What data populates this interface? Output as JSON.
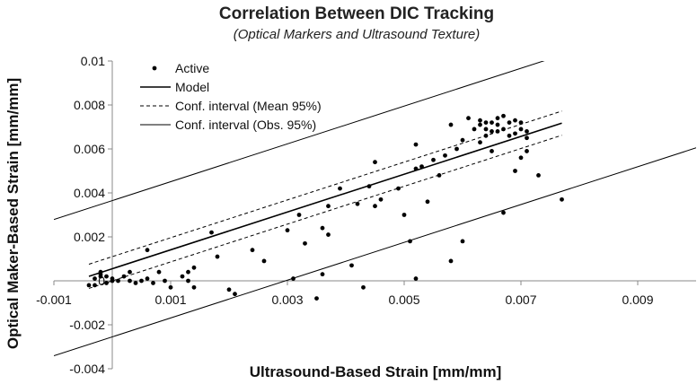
{
  "chart_data": {
    "type": "scatter",
    "title": "Correlation Between DIC Tracking",
    "subtitle": "(Optical Markers and Ultrasound Texture)",
    "xlabel": "Ultrasound-Based Strain [mm/mm]",
    "ylabel": "Optical Maker-Based  Strain [mm/mm]",
    "xlim": [
      -0.001,
      0.01
    ],
    "ylim": [
      -0.004,
      0.01
    ],
    "x_ticks": [
      -0.001,
      0.001,
      0.003,
      0.005,
      0.007,
      0.009
    ],
    "x_tick_labels": [
      "-0.001",
      "0.001",
      "0.003",
      "0.005",
      "0.007",
      "0.009"
    ],
    "y_ticks": [
      -0.004,
      -0.002,
      0,
      0.002,
      0.004,
      0.006,
      0.008,
      0.01
    ],
    "y_tick_labels": [
      "-0.004",
      "-0.002",
      "0",
      "0.002",
      "0.004",
      "0.006",
      "0.008",
      "0.01"
    ],
    "grid": false,
    "legend_position": "top-left",
    "legend": [
      "Active",
      "Model",
      "Conf. interval (Mean 95%)",
      "Conf. interval (Obs. 95%)"
    ],
    "model": {
      "slope": 0.86,
      "intercept": 0.00055
    },
    "mean_ci_halfwidth": 0.00055,
    "obs_ci_halfwidth": 0.0031,
    "series": [
      {
        "name": "Active",
        "points": [
          [
            -0.0004,
            -0.0002
          ],
          [
            -0.0003,
            -0.0002
          ],
          [
            -0.0003,
            0.0001
          ],
          [
            -0.0002,
            0.0002
          ],
          [
            -0.0002,
            0.0003
          ],
          [
            -0.0002,
            0.0004
          ],
          [
            -0.0001,
            -0.0001
          ],
          [
            -0.0001,
            0.0002
          ],
          [
            0.0,
            0.0
          ],
          [
            0.0,
            0.0001
          ],
          [
            0.0001,
            0.0
          ],
          [
            0.0002,
            0.0002
          ],
          [
            0.0003,
            0.0004
          ],
          [
            0.0003,
            0.0
          ],
          [
            0.0004,
            -0.0001
          ],
          [
            0.0005,
            0.0
          ],
          [
            0.0006,
            0.0001
          ],
          [
            0.0006,
            0.0014
          ],
          [
            0.0007,
            -0.0001
          ],
          [
            0.0008,
            0.0004
          ],
          [
            0.0009,
            0.0
          ],
          [
            0.001,
            -0.0003
          ],
          [
            0.0012,
            0.0002
          ],
          [
            0.0013,
            0.0004
          ],
          [
            0.0013,
            0.0
          ],
          [
            0.0014,
            0.0006
          ],
          [
            0.0014,
            -0.0003
          ],
          [
            0.0017,
            0.0022
          ],
          [
            0.0018,
            0.0011
          ],
          [
            0.002,
            -0.0004
          ],
          [
            0.0021,
            -0.0006
          ],
          [
            0.0024,
            0.0014
          ],
          [
            0.0026,
            0.0009
          ],
          [
            0.003,
            0.0023
          ],
          [
            0.0031,
            0.0001
          ],
          [
            0.0032,
            0.003
          ],
          [
            0.0033,
            0.0017
          ],
          [
            0.0035,
            -0.0008
          ],
          [
            0.0036,
            0.0024
          ],
          [
            0.0036,
            0.0003
          ],
          [
            0.0037,
            0.0021
          ],
          [
            0.0037,
            0.0034
          ],
          [
            0.0039,
            0.0042
          ],
          [
            0.0041,
            0.0007
          ],
          [
            0.0042,
            0.0035
          ],
          [
            0.0043,
            -0.0003
          ],
          [
            0.0044,
            0.0043
          ],
          [
            0.0045,
            0.0054
          ],
          [
            0.0045,
            0.0034
          ],
          [
            0.0046,
            0.0037
          ],
          [
            0.0049,
            0.0042
          ],
          [
            0.005,
            0.003
          ],
          [
            0.0051,
            0.0018
          ],
          [
            0.0052,
            0.0001
          ],
          [
            0.0052,
            0.0051
          ],
          [
            0.0052,
            0.0062
          ],
          [
            0.0053,
            0.0052
          ],
          [
            0.0054,
            0.0036
          ],
          [
            0.0055,
            0.0055
          ],
          [
            0.0056,
            0.0048
          ],
          [
            0.0057,
            0.0057
          ],
          [
            0.0058,
            0.0071
          ],
          [
            0.0058,
            0.0009
          ],
          [
            0.0059,
            0.006
          ],
          [
            0.006,
            0.0064
          ],
          [
            0.006,
            0.0018
          ],
          [
            0.0061,
            0.0074
          ],
          [
            0.0062,
            0.0069
          ],
          [
            0.0063,
            0.0073
          ],
          [
            0.0063,
            0.0071
          ],
          [
            0.0063,
            0.0063
          ],
          [
            0.0064,
            0.0072
          ],
          [
            0.0064,
            0.0069
          ],
          [
            0.0064,
            0.0066
          ],
          [
            0.0065,
            0.0072
          ],
          [
            0.0065,
            0.0059
          ],
          [
            0.0065,
            0.0068
          ],
          [
            0.0066,
            0.0071
          ],
          [
            0.0066,
            0.0074
          ],
          [
            0.0066,
            0.0068
          ],
          [
            0.0067,
            0.0069
          ],
          [
            0.0067,
            0.0031
          ],
          [
            0.0067,
            0.0075
          ],
          [
            0.0068,
            0.0072
          ],
          [
            0.0068,
            0.0066
          ],
          [
            0.0069,
            0.0073
          ],
          [
            0.0069,
            0.0067
          ],
          [
            0.0069,
            0.005
          ],
          [
            0.007,
            0.0072
          ],
          [
            0.007,
            0.0069
          ],
          [
            0.007,
            0.0056
          ],
          [
            0.0071,
            0.0059
          ],
          [
            0.0071,
            0.0068
          ],
          [
            0.0071,
            0.0065
          ],
          [
            0.0073,
            0.0048
          ],
          [
            0.0077,
            0.0037
          ]
        ]
      }
    ]
  }
}
